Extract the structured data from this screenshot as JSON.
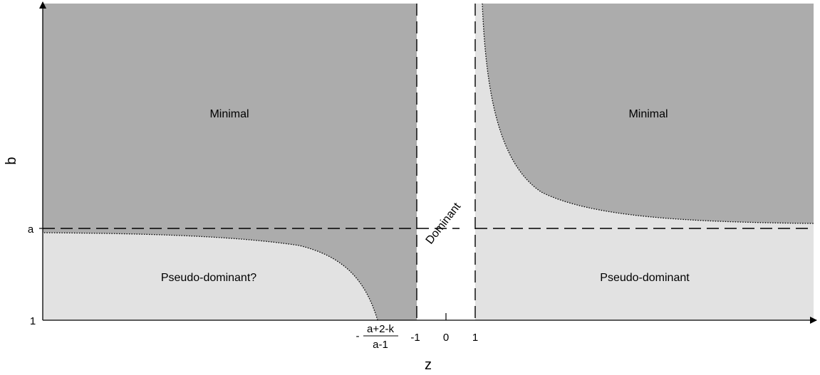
{
  "axes": {
    "x_title": "z",
    "y_title": "b",
    "y_ticks": {
      "one": "1",
      "a": "a"
    },
    "x_ticks": {
      "frac_sign": "-",
      "frac_numerator": "a+2-k",
      "frac_denominator": "a-1",
      "minus_one": "-1",
      "zero": "0",
      "one": "1"
    }
  },
  "regions": {
    "minimal_left": "Minimal",
    "minimal_right": "Minimal",
    "pseudo_dominant_left": "Pseudo-dominant?",
    "pseudo_dominant_right": "Pseudo-dominant",
    "dominant": "Dominant"
  },
  "colors": {
    "minimal": "#acacac",
    "pseudo_dominant": "#e2e2e2",
    "background": "#ffffff",
    "lines": "#000000"
  }
}
